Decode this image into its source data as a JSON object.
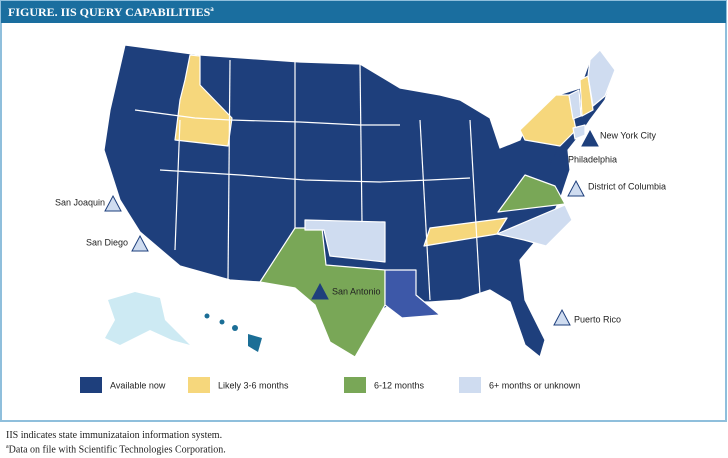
{
  "title": "FIGURE. IIS QUERY CAPABILITIES",
  "title_superscript": "a",
  "legend": [
    {
      "label": "Available now",
      "color": "#1e3f7c"
    },
    {
      "label": "Likely 3-6 months",
      "color": "#f6d77c"
    },
    {
      "label": "6-12 months",
      "color": "#79a757"
    },
    {
      "label": "6+ months or unknown",
      "color": "#cfdcf0"
    }
  ],
  "locations": [
    {
      "label": "San Joaquin"
    },
    {
      "label": "San Diego"
    },
    {
      "label": "San Antonio"
    },
    {
      "label": "New York City"
    },
    {
      "label": "Philadelphia"
    },
    {
      "label": "District of Columbia"
    },
    {
      "label": "Puerto Rico"
    }
  ],
  "footnotes": [
    {
      "text": "IIS indicates state immunizataion information system."
    },
    {
      "marker": "a",
      "text": "Data on file with Scientific Technologies Corporation."
    }
  ]
}
